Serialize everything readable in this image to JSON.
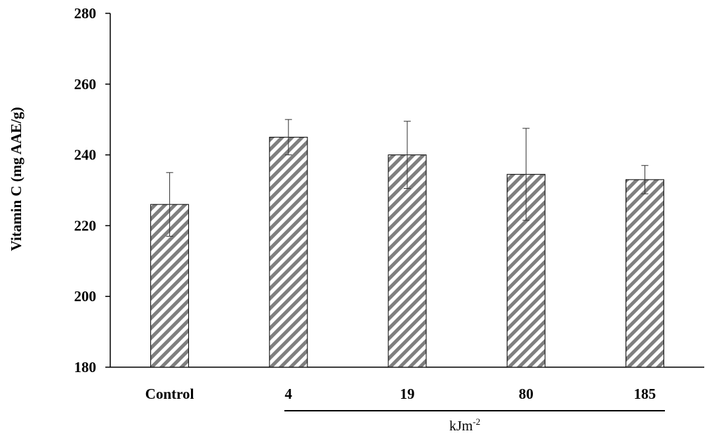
{
  "chart_data": {
    "type": "bar",
    "title": "",
    "ylabel": "Vitamin  C (mg AAE/g)",
    "xlabel": "",
    "ylim": [
      180,
      280
    ],
    "yticks": [
      180,
      200,
      220,
      240,
      260,
      280
    ],
    "categories": [
      "Control",
      "4",
      "19",
      "80",
      "185"
    ],
    "values": [
      226,
      245,
      240,
      234.5,
      233
    ],
    "errors": [
      9,
      5,
      9.5,
      13,
      4
    ],
    "group_label": {
      "base": "kJm",
      "sup": "-2"
    },
    "grid": false,
    "legend": "none",
    "colors": {
      "bar_stripe": "#7f7f7f",
      "bar_bg": "#ffffff",
      "outline": "#000000"
    }
  }
}
